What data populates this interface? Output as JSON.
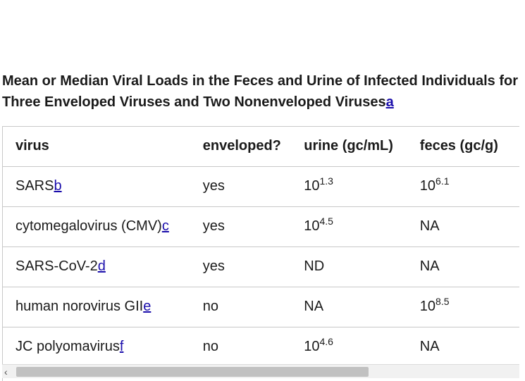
{
  "caption": {
    "text": "Mean or Median Viral Loads in the Feces and Urine of Infected Individuals for Three Enveloped Viruses and Two Nonenveloped Viruses",
    "footnote": "a"
  },
  "table": {
    "headers": [
      "virus",
      "enveloped?",
      "urine (gc/mL)",
      "feces (gc/g)"
    ],
    "rows": [
      {
        "virus": "SARS",
        "note": "b",
        "enveloped": "yes",
        "urine_base": "10",
        "urine_exp": "1.3",
        "urine": "",
        "feces_base": "10",
        "feces_exp": "6.1",
        "feces": ""
      },
      {
        "virus": "cytomegalovirus (CMV)",
        "note": "c",
        "enveloped": "yes",
        "urine_base": "10",
        "urine_exp": "4.5",
        "urine": "",
        "feces_base": "",
        "feces_exp": "",
        "feces": "NA"
      },
      {
        "virus": "SARS-CoV-2",
        "note": "d",
        "enveloped": "yes",
        "urine_base": "",
        "urine_exp": "",
        "urine": "ND",
        "feces_base": "",
        "feces_exp": "",
        "feces": "NA"
      },
      {
        "virus": "human norovirus GII",
        "note": "e",
        "enveloped": "no",
        "urine_base": "",
        "urine_exp": "",
        "urine": "NA",
        "feces_base": "10",
        "feces_exp": "8.5",
        "feces": ""
      },
      {
        "virus": "JC polyomavirus",
        "note": "f",
        "enveloped": "no",
        "urine_base": "10",
        "urine_exp": "4.6",
        "urine": "",
        "feces_base": "",
        "feces_exp": "",
        "feces": "NA"
      }
    ]
  },
  "scrollbar": {
    "left_arrow_glyph": "‹"
  }
}
